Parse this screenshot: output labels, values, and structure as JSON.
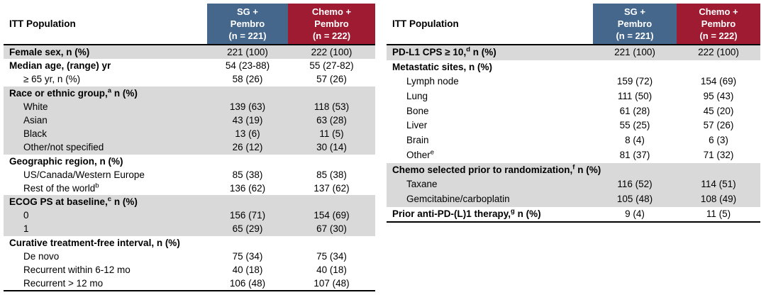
{
  "colors": {
    "header_blue": "#46678C",
    "header_red": "#9E1B32",
    "row_shade_gray": "#D9D9D9",
    "header_text": "#FFFFFF",
    "border_black": "#000000"
  },
  "tables": [
    {
      "corner_label": "ITT Population",
      "columns": [
        {
          "lines": [
            "SG +",
            "Pembro",
            "(n = 221)"
          ],
          "color": "#46678C"
        },
        {
          "lines": [
            "Chemo +",
            "Pembro",
            "(n = 222)"
          ],
          "color": "#9E1B32"
        }
      ],
      "rows": [
        {
          "text": "Female sex, n (%)",
          "bold": true,
          "indent": false,
          "shade": "gray",
          "values": [
            "221 (100)",
            "222 (100)"
          ]
        },
        {
          "text": "Median age, (range) yr",
          "bold": true,
          "indent": false,
          "shade": "white",
          "values": [
            "54 (23-88)",
            "55 (27-82)"
          ]
        },
        {
          "text": "≥ 65 yr, n (%)",
          "bold": false,
          "indent": true,
          "shade": "white",
          "values": [
            "58 (26)",
            "57 (26)"
          ]
        },
        {
          "text": "Race or ethnic group,",
          "sup": "a",
          "suffix": " n (%)",
          "bold": true,
          "indent": false,
          "shade": "gray",
          "values": [
            "",
            ""
          ]
        },
        {
          "text": "White",
          "bold": false,
          "indent": true,
          "shade": "gray",
          "values": [
            "139 (63)",
            "118 (53)"
          ]
        },
        {
          "text": "Asian",
          "bold": false,
          "indent": true,
          "shade": "gray",
          "values": [
            "43 (19)",
            "63 (28)"
          ]
        },
        {
          "text": "Black",
          "bold": false,
          "indent": true,
          "shade": "gray",
          "values": [
            "13 (6)",
            "11 (5)"
          ]
        },
        {
          "text": "Other/not specified",
          "bold": false,
          "indent": true,
          "shade": "gray",
          "values": [
            "26 (12)",
            "30 (14)"
          ]
        },
        {
          "text": "Geographic region, n (%)",
          "bold": true,
          "indent": false,
          "shade": "white",
          "values": [
            "",
            ""
          ]
        },
        {
          "text": "US/Canada/Western Europe",
          "bold": false,
          "indent": true,
          "shade": "white",
          "values": [
            "85 (38)",
            "85 (38)"
          ]
        },
        {
          "text": "Rest of the world",
          "sup": "b",
          "suffix": "",
          "bold": false,
          "indent": true,
          "shade": "white",
          "values": [
            "136 (62)",
            "137 (62)"
          ]
        },
        {
          "text": "ECOG PS at baseline,",
          "sup": "c",
          "suffix": " n (%)",
          "bold": true,
          "indent": false,
          "shade": "gray",
          "values": [
            "",
            ""
          ]
        },
        {
          "text": "0",
          "bold": false,
          "indent": true,
          "shade": "gray",
          "values": [
            "156 (71)",
            "154 (69)"
          ]
        },
        {
          "text": "1",
          "bold": false,
          "indent": true,
          "shade": "gray",
          "values": [
            "65 (29)",
            "67 (30)"
          ]
        },
        {
          "text": "Curative treatment-free interval, n (%)",
          "bold": true,
          "indent": false,
          "shade": "white",
          "values": [
            "",
            ""
          ]
        },
        {
          "text": "De novo",
          "bold": false,
          "indent": true,
          "shade": "white",
          "values": [
            "75 (34)",
            "75 (34)"
          ]
        },
        {
          "text": "Recurrent within 6-12 mo",
          "bold": false,
          "indent": true,
          "shade": "white",
          "values": [
            "40 (18)",
            "40 (18)"
          ]
        },
        {
          "text": "Recurrent > 12 mo",
          "bold": false,
          "indent": true,
          "shade": "white",
          "values": [
            "106 (48)",
            "107 (48)"
          ]
        }
      ]
    },
    {
      "corner_label": "ITT Population",
      "columns": [
        {
          "lines": [
            "SG +",
            "Pembro",
            "(n = 221)"
          ],
          "color": "#46678C"
        },
        {
          "lines": [
            "Chemo +",
            "Pembro",
            "(n = 222)"
          ],
          "color": "#9E1B32"
        }
      ],
      "rows": [
        {
          "text": "PD-L1 CPS ≥ 10,",
          "sup": "d",
          "suffix": " n (%)",
          "bold": true,
          "indent": false,
          "shade": "gray",
          "values": [
            "221 (100)",
            "222 (100)"
          ]
        },
        {
          "text": "Metastatic sites, n (%)",
          "bold": true,
          "indent": false,
          "shade": "white",
          "values": [
            "",
            ""
          ]
        },
        {
          "text": "Lymph node",
          "bold": false,
          "indent": true,
          "shade": "white",
          "values": [
            "159 (72)",
            "154 (69)"
          ]
        },
        {
          "text": "Lung",
          "bold": false,
          "indent": true,
          "shade": "white",
          "values": [
            "111 (50)",
            "95 (43)"
          ]
        },
        {
          "text": "Bone",
          "bold": false,
          "indent": true,
          "shade": "white",
          "values": [
            "61 (28)",
            "45 (20)"
          ]
        },
        {
          "text": "Liver",
          "bold": false,
          "indent": true,
          "shade": "white",
          "values": [
            "55 (25)",
            "57 (26)"
          ]
        },
        {
          "text": "Brain",
          "bold": false,
          "indent": true,
          "shade": "white",
          "values": [
            "8 (4)",
            "6 (3)"
          ]
        },
        {
          "text": "Other",
          "sup": "e",
          "suffix": "",
          "bold": false,
          "indent": true,
          "shade": "white",
          "values": [
            "81 (37)",
            "71 (32)"
          ]
        },
        {
          "text": "Chemo selected prior to randomization,",
          "sup": "f",
          "suffix": " n (%)",
          "bold": true,
          "indent": false,
          "shade": "gray",
          "values": [
            "",
            ""
          ]
        },
        {
          "text": "Taxane",
          "bold": false,
          "indent": true,
          "shade": "gray",
          "values": [
            "116 (52)",
            "114 (51)"
          ]
        },
        {
          "text": "Gemcitabine/carboplatin",
          "bold": false,
          "indent": true,
          "shade": "gray",
          "values": [
            "105 (48)",
            "108 (49)"
          ]
        },
        {
          "text": "Prior anti-PD-(L)1 therapy,",
          "sup": "g",
          "suffix": " n (%)",
          "bold": true,
          "indent": false,
          "shade": "white",
          "values": [
            "9 (4)",
            "11 (5)"
          ]
        }
      ]
    }
  ]
}
